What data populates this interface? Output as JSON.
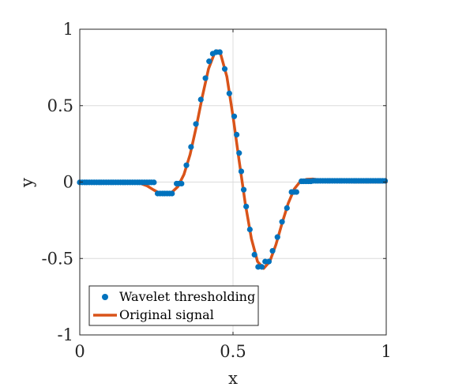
{
  "chart_data": {
    "type": "scatter",
    "xlabel": "x",
    "ylabel": "y",
    "xlim": [
      0,
      1
    ],
    "ylim": [
      -1,
      1
    ],
    "xticks": [
      0,
      0.5,
      1
    ],
    "yticks": [
      -1,
      -0.5,
      0,
      0.5,
      1
    ],
    "xtick_labels": [
      "0",
      "0.5",
      "1"
    ],
    "ytick_labels": [
      "-1",
      "-0.5",
      "0",
      "0.5",
      "1"
    ],
    "grid": true,
    "legend_position": "bottom-left",
    "legend": {
      "wavelet_label": "Wavelet thresholding",
      "original_label": "Original signal"
    },
    "series": [
      {
        "name": "Wavelet thresholding",
        "kind": "scatter",
        "color": "#0072BD",
        "points": [
          [
            0.0,
            -0.002
          ],
          [
            0.008,
            -0.002
          ],
          [
            0.016,
            -0.002
          ],
          [
            0.023,
            -0.002
          ],
          [
            0.031,
            -0.002
          ],
          [
            0.039,
            -0.002
          ],
          [
            0.047,
            -0.002
          ],
          [
            0.055,
            -0.002
          ],
          [
            0.063,
            -0.002
          ],
          [
            0.07,
            -0.002
          ],
          [
            0.078,
            -0.002
          ],
          [
            0.086,
            -0.002
          ],
          [
            0.094,
            -0.002
          ],
          [
            0.102,
            -0.002
          ],
          [
            0.109,
            -0.002
          ],
          [
            0.117,
            -0.002
          ],
          [
            0.125,
            -0.002
          ],
          [
            0.133,
            -0.002
          ],
          [
            0.141,
            -0.002
          ],
          [
            0.148,
            -0.002
          ],
          [
            0.156,
            -0.002
          ],
          [
            0.164,
            -0.002
          ],
          [
            0.172,
            -0.002
          ],
          [
            0.18,
            -0.002
          ],
          [
            0.188,
            -0.002
          ],
          [
            0.195,
            -0.002
          ],
          [
            0.203,
            -0.002
          ],
          [
            0.211,
            -0.002
          ],
          [
            0.219,
            -0.002
          ],
          [
            0.227,
            -0.002
          ],
          [
            0.234,
            -0.002
          ],
          [
            0.242,
            -0.002
          ],
          [
            0.254,
            -0.075
          ],
          [
            0.262,
            -0.075
          ],
          [
            0.27,
            -0.075
          ],
          [
            0.277,
            -0.075
          ],
          [
            0.285,
            -0.075
          ],
          [
            0.293,
            -0.075
          ],
          [
            0.301,
            -0.075
          ],
          [
            0.316,
            -0.01
          ],
          [
            0.324,
            -0.01
          ],
          [
            0.332,
            -0.01
          ],
          [
            0.348,
            0.11
          ],
          [
            0.363,
            0.23
          ],
          [
            0.379,
            0.38
          ],
          [
            0.395,
            0.54
          ],
          [
            0.41,
            0.68
          ],
          [
            0.422,
            0.79
          ],
          [
            0.434,
            0.84
          ],
          [
            0.445,
            0.85
          ],
          [
            0.457,
            0.85
          ],
          [
            0.473,
            0.74
          ],
          [
            0.488,
            0.58
          ],
          [
            0.504,
            0.43
          ],
          [
            0.512,
            0.31
          ],
          [
            0.52,
            0.19
          ],
          [
            0.527,
            0.07
          ],
          [
            0.535,
            -0.05
          ],
          [
            0.543,
            -0.16
          ],
          [
            0.555,
            -0.31
          ],
          [
            0.57,
            -0.475
          ],
          [
            0.582,
            -0.555
          ],
          [
            0.594,
            -0.555
          ],
          [
            0.605,
            -0.52
          ],
          [
            0.617,
            -0.52
          ],
          [
            0.629,
            -0.45
          ],
          [
            0.645,
            -0.36
          ],
          [
            0.66,
            -0.26
          ],
          [
            0.676,
            -0.17
          ],
          [
            0.691,
            -0.065
          ],
          [
            0.699,
            -0.065
          ],
          [
            0.707,
            -0.065
          ],
          [
            0.723,
            0.005
          ],
          [
            0.73,
            0.005
          ],
          [
            0.738,
            0.005
          ],
          [
            0.746,
            0.005
          ],
          [
            0.754,
            0.005
          ],
          [
            0.762,
            0.008
          ],
          [
            0.77,
            0.008
          ],
          [
            0.777,
            0.008
          ],
          [
            0.785,
            0.008
          ],
          [
            0.793,
            0.008
          ],
          [
            0.801,
            0.008
          ],
          [
            0.809,
            0.008
          ],
          [
            0.816,
            0.008
          ],
          [
            0.824,
            0.008
          ],
          [
            0.832,
            0.008
          ],
          [
            0.84,
            0.008
          ],
          [
            0.848,
            0.008
          ],
          [
            0.855,
            0.008
          ],
          [
            0.863,
            0.008
          ],
          [
            0.871,
            0.008
          ],
          [
            0.879,
            0.008
          ],
          [
            0.887,
            0.008
          ],
          [
            0.895,
            0.008
          ],
          [
            0.902,
            0.008
          ],
          [
            0.91,
            0.008
          ],
          [
            0.918,
            0.008
          ],
          [
            0.926,
            0.008
          ],
          [
            0.934,
            0.008
          ],
          [
            0.941,
            0.008
          ],
          [
            0.949,
            0.008
          ],
          [
            0.957,
            0.008
          ],
          [
            0.965,
            0.008
          ],
          [
            0.973,
            0.008
          ],
          [
            0.98,
            0.008
          ],
          [
            0.988,
            0.008
          ],
          [
            0.996,
            0.008
          ]
        ]
      },
      {
        "name": "Original signal",
        "kind": "line",
        "color": "#D95319",
        "points": [
          [
            0.0,
            0.0
          ],
          [
            0.15,
            0.0
          ],
          [
            0.18,
            -0.003
          ],
          [
            0.2,
            -0.01
          ],
          [
            0.22,
            -0.025
          ],
          [
            0.24,
            -0.05
          ],
          [
            0.26,
            -0.072
          ],
          [
            0.28,
            -0.078
          ],
          [
            0.3,
            -0.068
          ],
          [
            0.32,
            -0.03
          ],
          [
            0.34,
            0.05
          ],
          [
            0.36,
            0.18
          ],
          [
            0.38,
            0.36
          ],
          [
            0.4,
            0.56
          ],
          [
            0.42,
            0.74
          ],
          [
            0.44,
            0.845
          ],
          [
            0.45,
            0.858
          ],
          [
            0.46,
            0.835
          ],
          [
            0.48,
            0.69
          ],
          [
            0.5,
            0.43
          ],
          [
            0.52,
            0.14
          ],
          [
            0.54,
            -0.14
          ],
          [
            0.56,
            -0.37
          ],
          [
            0.58,
            -0.52
          ],
          [
            0.6,
            -0.565
          ],
          [
            0.62,
            -0.52
          ],
          [
            0.64,
            -0.41
          ],
          [
            0.66,
            -0.27
          ],
          [
            0.68,
            -0.14
          ],
          [
            0.7,
            -0.045
          ],
          [
            0.72,
            0.005
          ],
          [
            0.74,
            0.018
          ],
          [
            0.76,
            0.02
          ],
          [
            0.78,
            0.015
          ],
          [
            0.8,
            0.008
          ],
          [
            0.85,
            0.002
          ],
          [
            0.9,
            0.0
          ],
          [
            1.0,
            0.0
          ]
        ]
      }
    ]
  }
}
